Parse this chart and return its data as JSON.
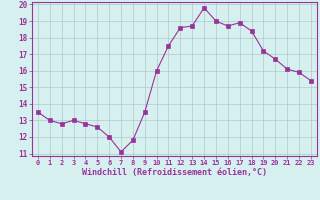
{
  "x": [
    0,
    1,
    2,
    3,
    4,
    5,
    6,
    7,
    8,
    9,
    10,
    11,
    12,
    13,
    14,
    15,
    16,
    17,
    18,
    19,
    20,
    21,
    22,
    23
  ],
  "y": [
    13.5,
    13.0,
    12.8,
    13.0,
    12.8,
    12.6,
    12.0,
    11.1,
    11.8,
    13.5,
    16.0,
    17.5,
    18.6,
    18.7,
    19.8,
    19.0,
    18.7,
    18.9,
    18.4,
    17.2,
    16.7,
    16.1,
    15.9,
    15.4
  ],
  "xlabel": "Windchill (Refroidissement éolien,°C)",
  "line_color": "#993399",
  "marker": "s",
  "marker_size": 2.2,
  "bg_color": "#d6f0f0",
  "grid_color": "#b0c8c8",
  "ylim": [
    11,
    20
  ],
  "xlim": [
    -0.5,
    23.5
  ],
  "yticks": [
    11,
    12,
    13,
    14,
    15,
    16,
    17,
    18,
    19,
    20
  ],
  "xticks": [
    0,
    1,
    2,
    3,
    4,
    5,
    6,
    7,
    8,
    9,
    10,
    11,
    12,
    13,
    14,
    15,
    16,
    17,
    18,
    19,
    20,
    21,
    22,
    23
  ]
}
